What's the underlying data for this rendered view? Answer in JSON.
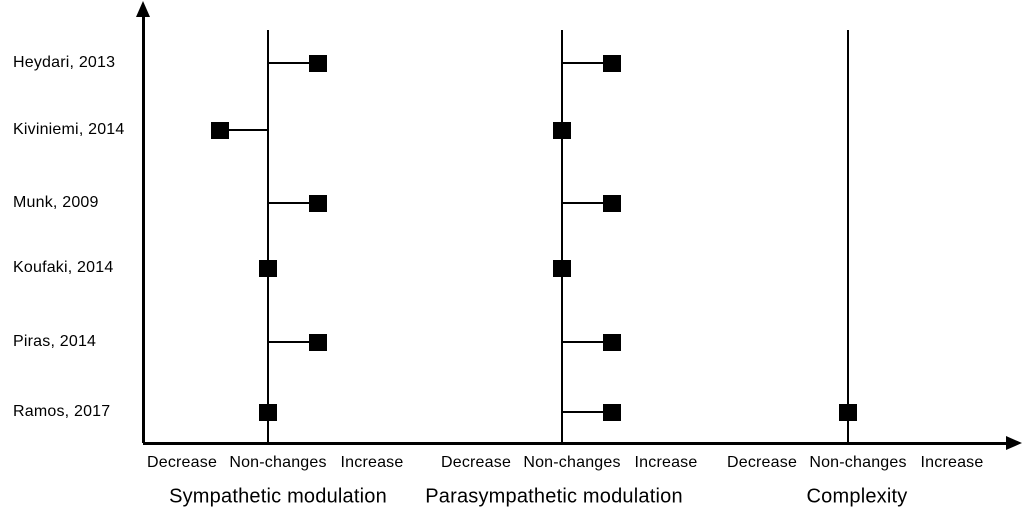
{
  "chart_data": {
    "type": "scatter",
    "title": "",
    "description": "Summary plot of study outcomes: filled squares placed left of a panel line indicate Decrease, on the line Non-changes, right of the line Increase",
    "marker_shape": "filled-square",
    "grid": false,
    "legend": "none",
    "colors": {
      "ink": "#000000",
      "background": "#ffffff"
    },
    "studies": [
      "Heydari, 2013",
      "Kiviniemi, 2014",
      "Munk, 2009",
      "Koufaki, 2014",
      "Piras, 2014",
      "Ramos, 2017"
    ],
    "x_categories": [
      "Decrease",
      "Non-changes",
      "Increase"
    ],
    "panels": [
      {
        "title": "Sympathetic modulation",
        "results": [
          {
            "study": "Heydari, 2013",
            "value": "Increase"
          },
          {
            "study": "Kiviniemi, 2014",
            "value": "Decrease"
          },
          {
            "study": "Munk, 2009",
            "value": "Increase"
          },
          {
            "study": "Koufaki, 2014",
            "value": "Non-changes"
          },
          {
            "study": "Piras, 2014",
            "value": "Increase"
          },
          {
            "study": "Ramos, 2017",
            "value": "Non-changes"
          }
        ]
      },
      {
        "title": "Parasympathetic modulation",
        "results": [
          {
            "study": "Heydari, 2013",
            "value": "Increase"
          },
          {
            "study": "Kiviniemi, 2014",
            "value": "Non-changes"
          },
          {
            "study": "Munk, 2009",
            "value": "Increase"
          },
          {
            "study": "Koufaki, 2014",
            "value": "Non-changes"
          },
          {
            "study": "Piras, 2014",
            "value": "Increase"
          },
          {
            "study": "Ramos, 2017",
            "value": "Increase"
          }
        ]
      },
      {
        "title": "Complexity",
        "results": [
          {
            "study": "Ramos, 2017",
            "value": "Non-changes"
          }
        ]
      }
    ]
  }
}
